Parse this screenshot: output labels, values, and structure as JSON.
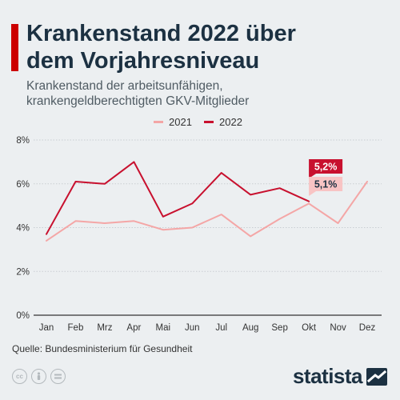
{
  "header": {
    "title_lines": [
      "Krankenstand 2022 über",
      "dem Vorjahresniveau"
    ],
    "subtitle_lines": [
      "Krankenstand der arbeitsunfähigen,",
      "krankengeldberechtigten GKV-Mitglieder"
    ]
  },
  "chart_data": {
    "type": "line",
    "categories": [
      "Jan",
      "Feb",
      "Mrz",
      "Apr",
      "Mai",
      "Jun",
      "Jul",
      "Aug",
      "Sep",
      "Okt",
      "Nov",
      "Dez"
    ],
    "series": [
      {
        "name": "2021",
        "color": "#f4a6a6",
        "values": [
          3.4,
          4.3,
          4.2,
          4.3,
          3.9,
          4.0,
          4.6,
          3.6,
          4.4,
          5.1,
          4.2,
          6.1
        ]
      },
      {
        "name": "2022",
        "color": "#c8102e",
        "values": [
          3.7,
          6.1,
          6.0,
          7.0,
          4.5,
          5.1,
          6.5,
          5.5,
          5.8,
          5.2,
          null,
          null
        ]
      }
    ],
    "y_ticks": [
      "0%",
      "2%",
      "4%",
      "6%",
      "8%"
    ],
    "ylim": [
      0,
      8
    ],
    "grid": true,
    "legend_position": "top-center",
    "annotations": [
      {
        "series": "2022",
        "category": "Okt",
        "value": 5.2,
        "label": "5,2%",
        "bg": "#c8102e",
        "fg": "#ffffff"
      },
      {
        "series": "2021",
        "category": "Okt",
        "value": 5.1,
        "label": "5,1%",
        "bg": "#f8c4c4",
        "fg": "#1c3142"
      }
    ]
  },
  "footer": {
    "source": "Quelle: Bundesministerium für Gesundheit",
    "brand": "statista",
    "license_icons": [
      "cc-icon",
      "person-icon",
      "equals-icon"
    ]
  },
  "colors": {
    "accent": "#cc0000",
    "title": "#1c3142",
    "background": "#eceff1"
  }
}
